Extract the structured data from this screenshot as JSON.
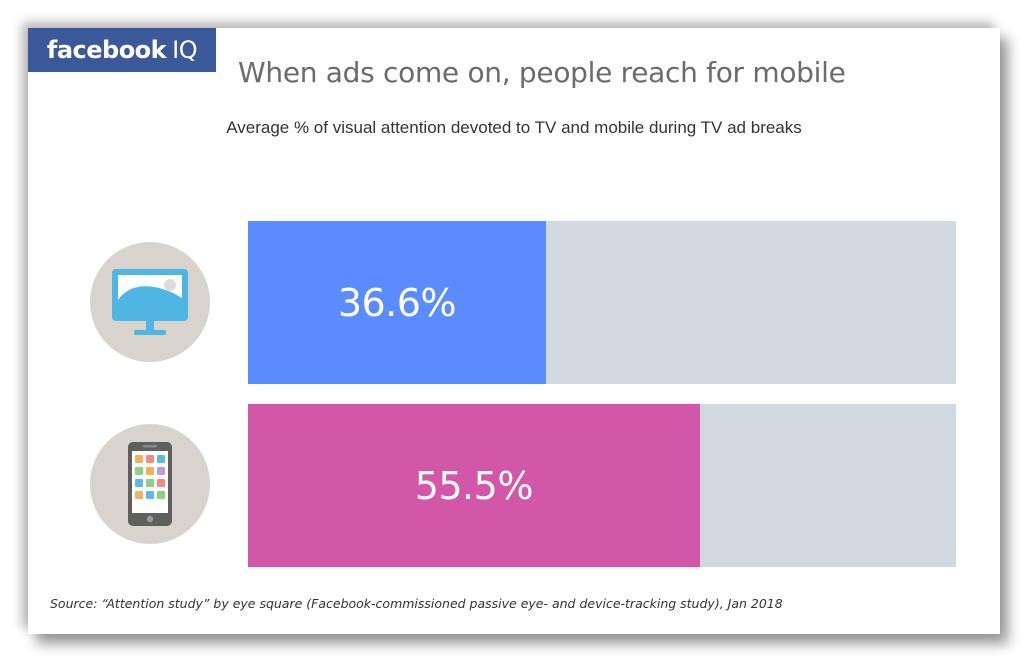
{
  "brand": {
    "name_bold": "facebook",
    "name_suffix": "IQ",
    "bg_color": "#3b5998"
  },
  "header": {
    "title": "When ads come on, people reach for mobile"
  },
  "chart_data": {
    "type": "bar",
    "orientation": "horizontal",
    "title": "When ads come on, people reach for mobile",
    "subtitle": "Average % of visual attention devoted to TV and mobile during TV ad breaks",
    "xlabel": "",
    "ylabel": "",
    "xlim": [
      0,
      87
    ],
    "grid": false,
    "legend": "none",
    "categories": [
      "tv-icon",
      "mobile-phone-icon"
    ],
    "values": [
      36.6,
      55.5
    ],
    "data_labels": [
      "36.6%",
      "55.5%"
    ],
    "colors": [
      "#5b8cff",
      "#d357a8"
    ],
    "track_color": "#cfd9df"
  },
  "footer": {
    "source": "Source: “Attention study” by eye square (Facebook-commissioned passive eye- and device-tracking study), Jan 2018"
  }
}
